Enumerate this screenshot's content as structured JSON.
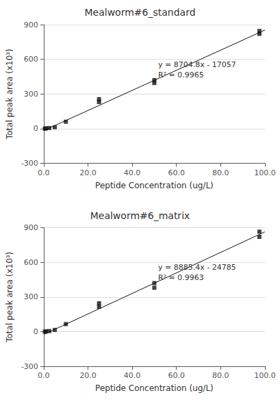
{
  "chart_data": [
    {
      "type": "scatter",
      "title": "Mealworm#6_standard",
      "xlabel": "Peptide Concentration (ug/L)",
      "ylabel": "Total peak area (x10³)",
      "xlim": [
        0,
        100
      ],
      "xticks": [
        {
          "value": 0,
          "label": "0.0"
        },
        {
          "value": 20,
          "label": "20.0"
        },
        {
          "value": 40,
          "label": "40.0"
        },
        {
          "value": 60,
          "label": "60.0"
        },
        {
          "value": 80,
          "label": "80.0"
        },
        {
          "value": 100,
          "label": "100.0"
        }
      ],
      "ylim": [
        -300,
        900
      ],
      "yticks": [
        -300,
        0,
        300,
        600,
        900
      ],
      "annotations": [
        "y = 8704.8x - 17057",
        "R² = 0.9965"
      ],
      "series": [
        {
          "type": "scatter",
          "marker": "square",
          "color": "#111111",
          "x": [
            0.5,
            1.0,
            2.5,
            5.0,
            10.0,
            25.0,
            25.0,
            50.0,
            50.0,
            97.5,
            97.5
          ],
          "values": [
            0,
            2,
            5,
            12,
            60,
            230,
            255,
            395,
            420,
            820,
            845
          ]
        },
        {
          "type": "line",
          "color": "#111111",
          "line_style": "solid",
          "x": [
            0,
            100
          ],
          "values": [
            -17.057,
            853.423
          ]
        }
      ]
    },
    {
      "type": "scatter",
      "title": "Mealworm#6_matrix",
      "xlabel": "Peptide Concentration (ug/L)",
      "ylabel": "Total peak area (x10³)",
      "xlim": [
        0,
        100
      ],
      "xticks": [
        {
          "value": 0,
          "label": "0.0"
        },
        {
          "value": 20,
          "label": "20.0"
        },
        {
          "value": 40,
          "label": "40.0"
        },
        {
          "value": 60,
          "label": "60.0"
        },
        {
          "value": 80,
          "label": "80.0"
        },
        {
          "value": 100,
          "label": "100.0"
        }
      ],
      "ylim": [
        -300,
        900
      ],
      "yticks": [
        -300,
        0,
        300,
        600,
        900
      ],
      "annotations": [
        "y = 8885.4x - 24785",
        "R² = 0.9963"
      ],
      "series": [
        {
          "type": "scatter",
          "marker": "square",
          "color": "#111111",
          "x": [
            0.5,
            1.0,
            2.5,
            5.0,
            10.0,
            25.0,
            25.0,
            50.0,
            50.0,
            97.5,
            97.5
          ],
          "values": [
            0,
            2,
            5,
            15,
            65,
            215,
            245,
            380,
            420,
            820,
            865
          ]
        },
        {
          "type": "line",
          "color": "#111111",
          "line_style": "solid",
          "x": [
            0,
            100
          ],
          "values": [
            -24.785,
            863.755
          ]
        }
      ]
    }
  ]
}
